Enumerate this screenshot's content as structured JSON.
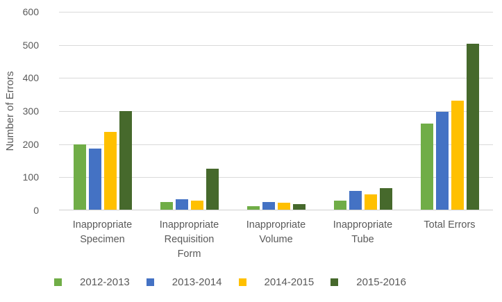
{
  "chart_data": {
    "type": "bar",
    "title": "",
    "xlabel": "",
    "ylabel": "Number of Errors",
    "ylim": [
      0,
      600
    ],
    "yticks": [
      0,
      100,
      200,
      300,
      400,
      500,
      600
    ],
    "grid": true,
    "legend_position": "bottom",
    "categories": [
      "Inappropriate Specimen",
      "Inappropriate Requisition Form",
      "Inappropriate Volume",
      "Inappropriate Tube",
      "Total Errors"
    ],
    "series": [
      {
        "name": "2012-2013",
        "color": "#70AD47",
        "values": [
          198,
          24,
          10,
          28,
          260
        ]
      },
      {
        "name": "2013-2014",
        "color": "#4472C4",
        "values": [
          185,
          31,
          24,
          56,
          296
        ]
      },
      {
        "name": "2014-2015",
        "color": "#FFC000",
        "values": [
          236,
          27,
          21,
          46,
          330
        ]
      },
      {
        "name": "2015-2016",
        "color": "#46692C",
        "values": [
          298,
          124,
          16,
          64,
          502
        ]
      }
    ],
    "colors": {
      "text": "#595959",
      "gridline": "#d9d9d9",
      "background": "#ffffff"
    }
  }
}
